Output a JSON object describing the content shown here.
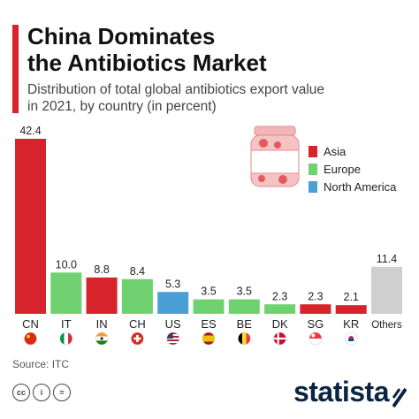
{
  "header": {
    "title_lines": [
      "China Dominates",
      "the Antibiotics Market"
    ],
    "subtitle_lines": [
      "Distribution of total global antibiotics export value",
      "in 2021, by country (in percent)"
    ]
  },
  "colors": {
    "asia": "#d7232c",
    "europe": "#6fd16f",
    "north_america": "#4a9fd6",
    "others": "#cfcfcf",
    "accent": "#d7232c"
  },
  "chart_data": {
    "type": "bar",
    "categories": [
      "CN",
      "IT",
      "IN",
      "CH",
      "US",
      "ES",
      "BE",
      "DK",
      "SG",
      "KR",
      "Others"
    ],
    "values": [
      42.4,
      10.0,
      8.8,
      8.4,
      5.3,
      3.5,
      3.5,
      2.3,
      2.3,
      2.1,
      11.4
    ],
    "value_labels": [
      "42.4",
      "10.0",
      "8.8",
      "8.4",
      "5.3",
      "3.5",
      "3.5",
      "2.3",
      "2.3",
      "2.1",
      "11.4"
    ],
    "regions": [
      "Asia",
      "Europe",
      "Asia",
      "Europe",
      "North America",
      "Europe",
      "Europe",
      "Europe",
      "Asia",
      "Asia",
      "Others"
    ],
    "legend": [
      "Asia",
      "Europe",
      "North America"
    ],
    "legend_position": "top-right",
    "flag_icons": [
      "china-flag-icon",
      "italy-flag-icon",
      "india-flag-icon",
      "switzerland-flag-icon",
      "usa-flag-icon",
      "spain-flag-icon",
      "belgium-flag-icon",
      "denmark-flag-icon",
      "singapore-flag-icon",
      "south-korea-flag-icon",
      ""
    ],
    "ylim": [
      0,
      42.4
    ],
    "grid": false
  },
  "footer": {
    "source": "Source: ITC",
    "license_icons": [
      "cc-icon",
      "attribution-icon",
      "no-derivatives-icon"
    ],
    "license_symbols": [
      "cc",
      "i",
      "="
    ],
    "brand": "statista"
  }
}
